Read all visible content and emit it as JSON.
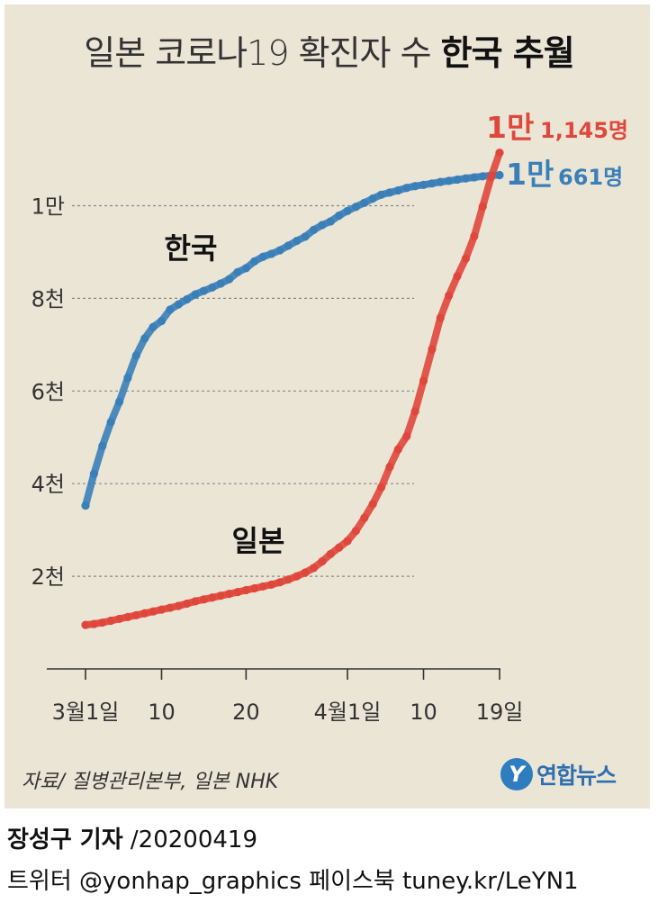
{
  "title": {
    "light": "일본 코로나19 확진자 수 ",
    "bold": "한국 추월"
  },
  "chart_data": {
    "type": "line",
    "title": "일본 코로나19 확진자 수 한국 추월",
    "xlabel": "",
    "ylabel": "",
    "x_ticks": [
      {
        "day": 0,
        "label": "3월1일"
      },
      {
        "day": 9,
        "label": "10"
      },
      {
        "day": 19,
        "label": "20"
      },
      {
        "day": 31,
        "label": "4월1일"
      },
      {
        "day": 40,
        "label": "10"
      },
      {
        "day": 49,
        "label": "19일"
      }
    ],
    "y_ticks": [
      {
        "value": 2000,
        "label": "2천"
      },
      {
        "value": 4000,
        "label": "4천"
      },
      {
        "value": 6000,
        "label": "6천"
      },
      {
        "value": 8000,
        "label": "8천"
      },
      {
        "value": 10000,
        "label": "1만"
      }
    ],
    "xlim": [
      0,
      49
    ],
    "ylim": [
      0,
      11145
    ],
    "grid": true,
    "series": [
      {
        "name": "한국",
        "color": "#3a7fb8",
        "days": [
          0,
          1,
          2,
          3,
          4,
          5,
          6,
          7,
          8,
          9,
          10,
          11,
          12,
          13,
          14,
          15,
          16,
          17,
          18,
          19,
          20,
          21,
          22,
          23,
          24,
          25,
          26,
          27,
          28,
          29,
          30,
          31,
          32,
          33,
          34,
          35,
          36,
          37,
          38,
          39,
          40,
          41,
          42,
          43,
          44,
          45,
          46,
          47,
          48,
          49
        ],
        "values": [
          3526,
          4212,
          4812,
          5328,
          5766,
          6284,
          6767,
          7134,
          7382,
          7513,
          7755,
          7869,
          7979,
          8086,
          8162,
          8236,
          8320,
          8413,
          8565,
          8652,
          8799,
          8897,
          8961,
          9037,
          9137,
          9241,
          9332,
          9478,
          9583,
          9661,
          9786,
          9887,
          9976,
          10062,
          10156,
          10237,
          10284,
          10331,
          10384,
          10423,
          10450,
          10480,
          10512,
          10537,
          10564,
          10591,
          10613,
          10635,
          10653,
          10661
        ],
        "end_label_big": "1만",
        "end_label_small": "661명"
      },
      {
        "name": "일본",
        "color": "#e0473c",
        "days": [
          0,
          1,
          2,
          3,
          4,
          5,
          6,
          7,
          8,
          9,
          10,
          11,
          12,
          13,
          14,
          15,
          16,
          17,
          18,
          19,
          20,
          21,
          22,
          23,
          24,
          25,
          26,
          27,
          28,
          29,
          30,
          31,
          32,
          33,
          34,
          35,
          36,
          37,
          38,
          39,
          40,
          41,
          42,
          43,
          44,
          45,
          46,
          47,
          48,
          49
        ],
        "values": [
          950,
          970,
          1000,
          1040,
          1080,
          1120,
          1160,
          1200,
          1240,
          1280,
          1320,
          1360,
          1410,
          1460,
          1500,
          1540,
          1580,
          1620,
          1660,
          1700,
          1740,
          1780,
          1820,
          1870,
          1930,
          2000,
          2080,
          2180,
          2320,
          2480,
          2620,
          2760,
          2980,
          3260,
          3560,
          3920,
          4360,
          4740,
          5020,
          5560,
          6220,
          6900,
          7580,
          8060,
          8480,
          8860,
          9340,
          9980,
          10620,
          11145
        ],
        "end_label_big": "1만",
        "end_label_small": "1,145명"
      }
    ]
  },
  "source": "자료/ 질병관리본부, 일본 NHK",
  "logo": {
    "mark": "Y",
    "text": "연합뉴스"
  },
  "reporter": {
    "name": "장성구 기자",
    "date": "/20200419"
  },
  "social": "트위터 @yonhap_graphics  페이스북 tuney.kr/LeYN1"
}
